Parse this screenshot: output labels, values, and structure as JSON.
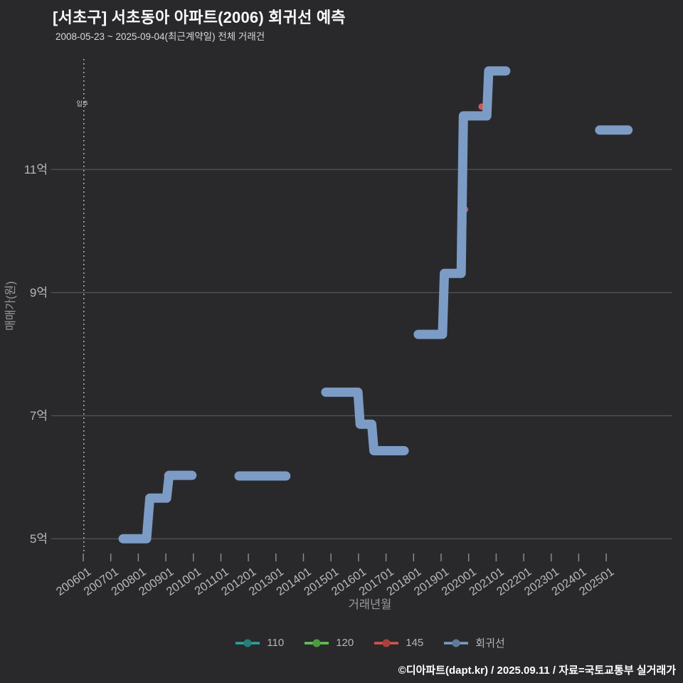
{
  "title": "[서초구] 서초동아 아파트(2006) 회귀선 예측",
  "subtitle": "2008-05-23 ~ 2025-09-04(최근계약일) 전체 거래건",
  "footer": "©디아파트(dapt.kr) / 2025.09.11 / 자료=국토교통부 실거래가",
  "colors": {
    "background": "#29292c",
    "grid": "#5f5f64",
    "tick": "#8a8a8a",
    "tick_label": "#b8b8b8",
    "axis_title": "#9a9a9a",
    "annotation": "#c8c8c8",
    "regression": "#7c9cc6",
    "series_110": "#30a39a",
    "series_120": "#63c654",
    "series_145": "#d9534f"
  },
  "chart_data": {
    "type": "line",
    "title": "[서초구] 서초동아 아파트(2006) 회귀선 예측",
    "subtitle": "2008-05-23 ~ 2025-09-04(최근계약일) 전체 거래건",
    "xlabel": "거래년월",
    "ylabel": "매매가(원)",
    "xlim": [
      2006.0,
      2027.4
    ],
    "ylim": [
      4.76,
      12.77
    ],
    "grid": "horizontal",
    "legend_position": "bottom",
    "x_ticks": [
      "200601",
      "200701",
      "200801",
      "200901",
      "201001",
      "201101",
      "201201",
      "201301",
      "201401",
      "201501",
      "201601",
      "201701",
      "201801",
      "201901",
      "202001",
      "202101",
      "202201",
      "202301",
      "202401",
      "202501"
    ],
    "y_ticks": [
      {
        "value": 5,
        "label": "5억"
      },
      {
        "value": 7,
        "label": "7억"
      },
      {
        "value": 9,
        "label": "9억"
      },
      {
        "value": 11,
        "label": "11억"
      }
    ],
    "annotation": {
      "label": "입주",
      "x": 2006.02
    },
    "series": [
      {
        "name": "110",
        "color": "#30a39a",
        "points": []
      },
      {
        "name": "120",
        "color": "#63c654",
        "points": []
      },
      {
        "name": "145",
        "color": "#d9534f",
        "points": [
          [
            2009.05,
            6.03
          ],
          [
            2019.87,
            10.35
          ],
          [
            2020.47,
            12.02
          ]
        ]
      },
      {
        "name": "회귀선",
        "color": "#7c9cc6",
        "segments": [
          [
            [
              2007.45,
              5.0
            ],
            [
              2008.3,
              5.0
            ],
            [
              2008.42,
              5.66
            ],
            [
              2009.03,
              5.66
            ],
            [
              2009.12,
              6.03
            ],
            [
              2009.95,
              6.03
            ]
          ],
          [
            [
              2011.66,
              6.02
            ],
            [
              2013.36,
              6.02
            ]
          ],
          [
            [
              2014.81,
              7.38
            ],
            [
              2015.98,
              7.38
            ],
            [
              2016.06,
              6.86
            ],
            [
              2016.48,
              6.86
            ],
            [
              2016.56,
              6.43
            ],
            [
              2017.66,
              6.43
            ]
          ],
          [
            [
              2018.17,
              8.32
            ],
            [
              2019.05,
              8.32
            ],
            [
              2019.12,
              9.31
            ],
            [
              2019.73,
              9.31
            ],
            [
              2019.81,
              11.87
            ],
            [
              2020.66,
              11.87
            ],
            [
              2020.73,
              12.6
            ],
            [
              2021.35,
              12.6
            ]
          ],
          [
            [
              2024.76,
              11.64
            ],
            [
              2025.79,
              11.64
            ]
          ]
        ]
      }
    ]
  }
}
